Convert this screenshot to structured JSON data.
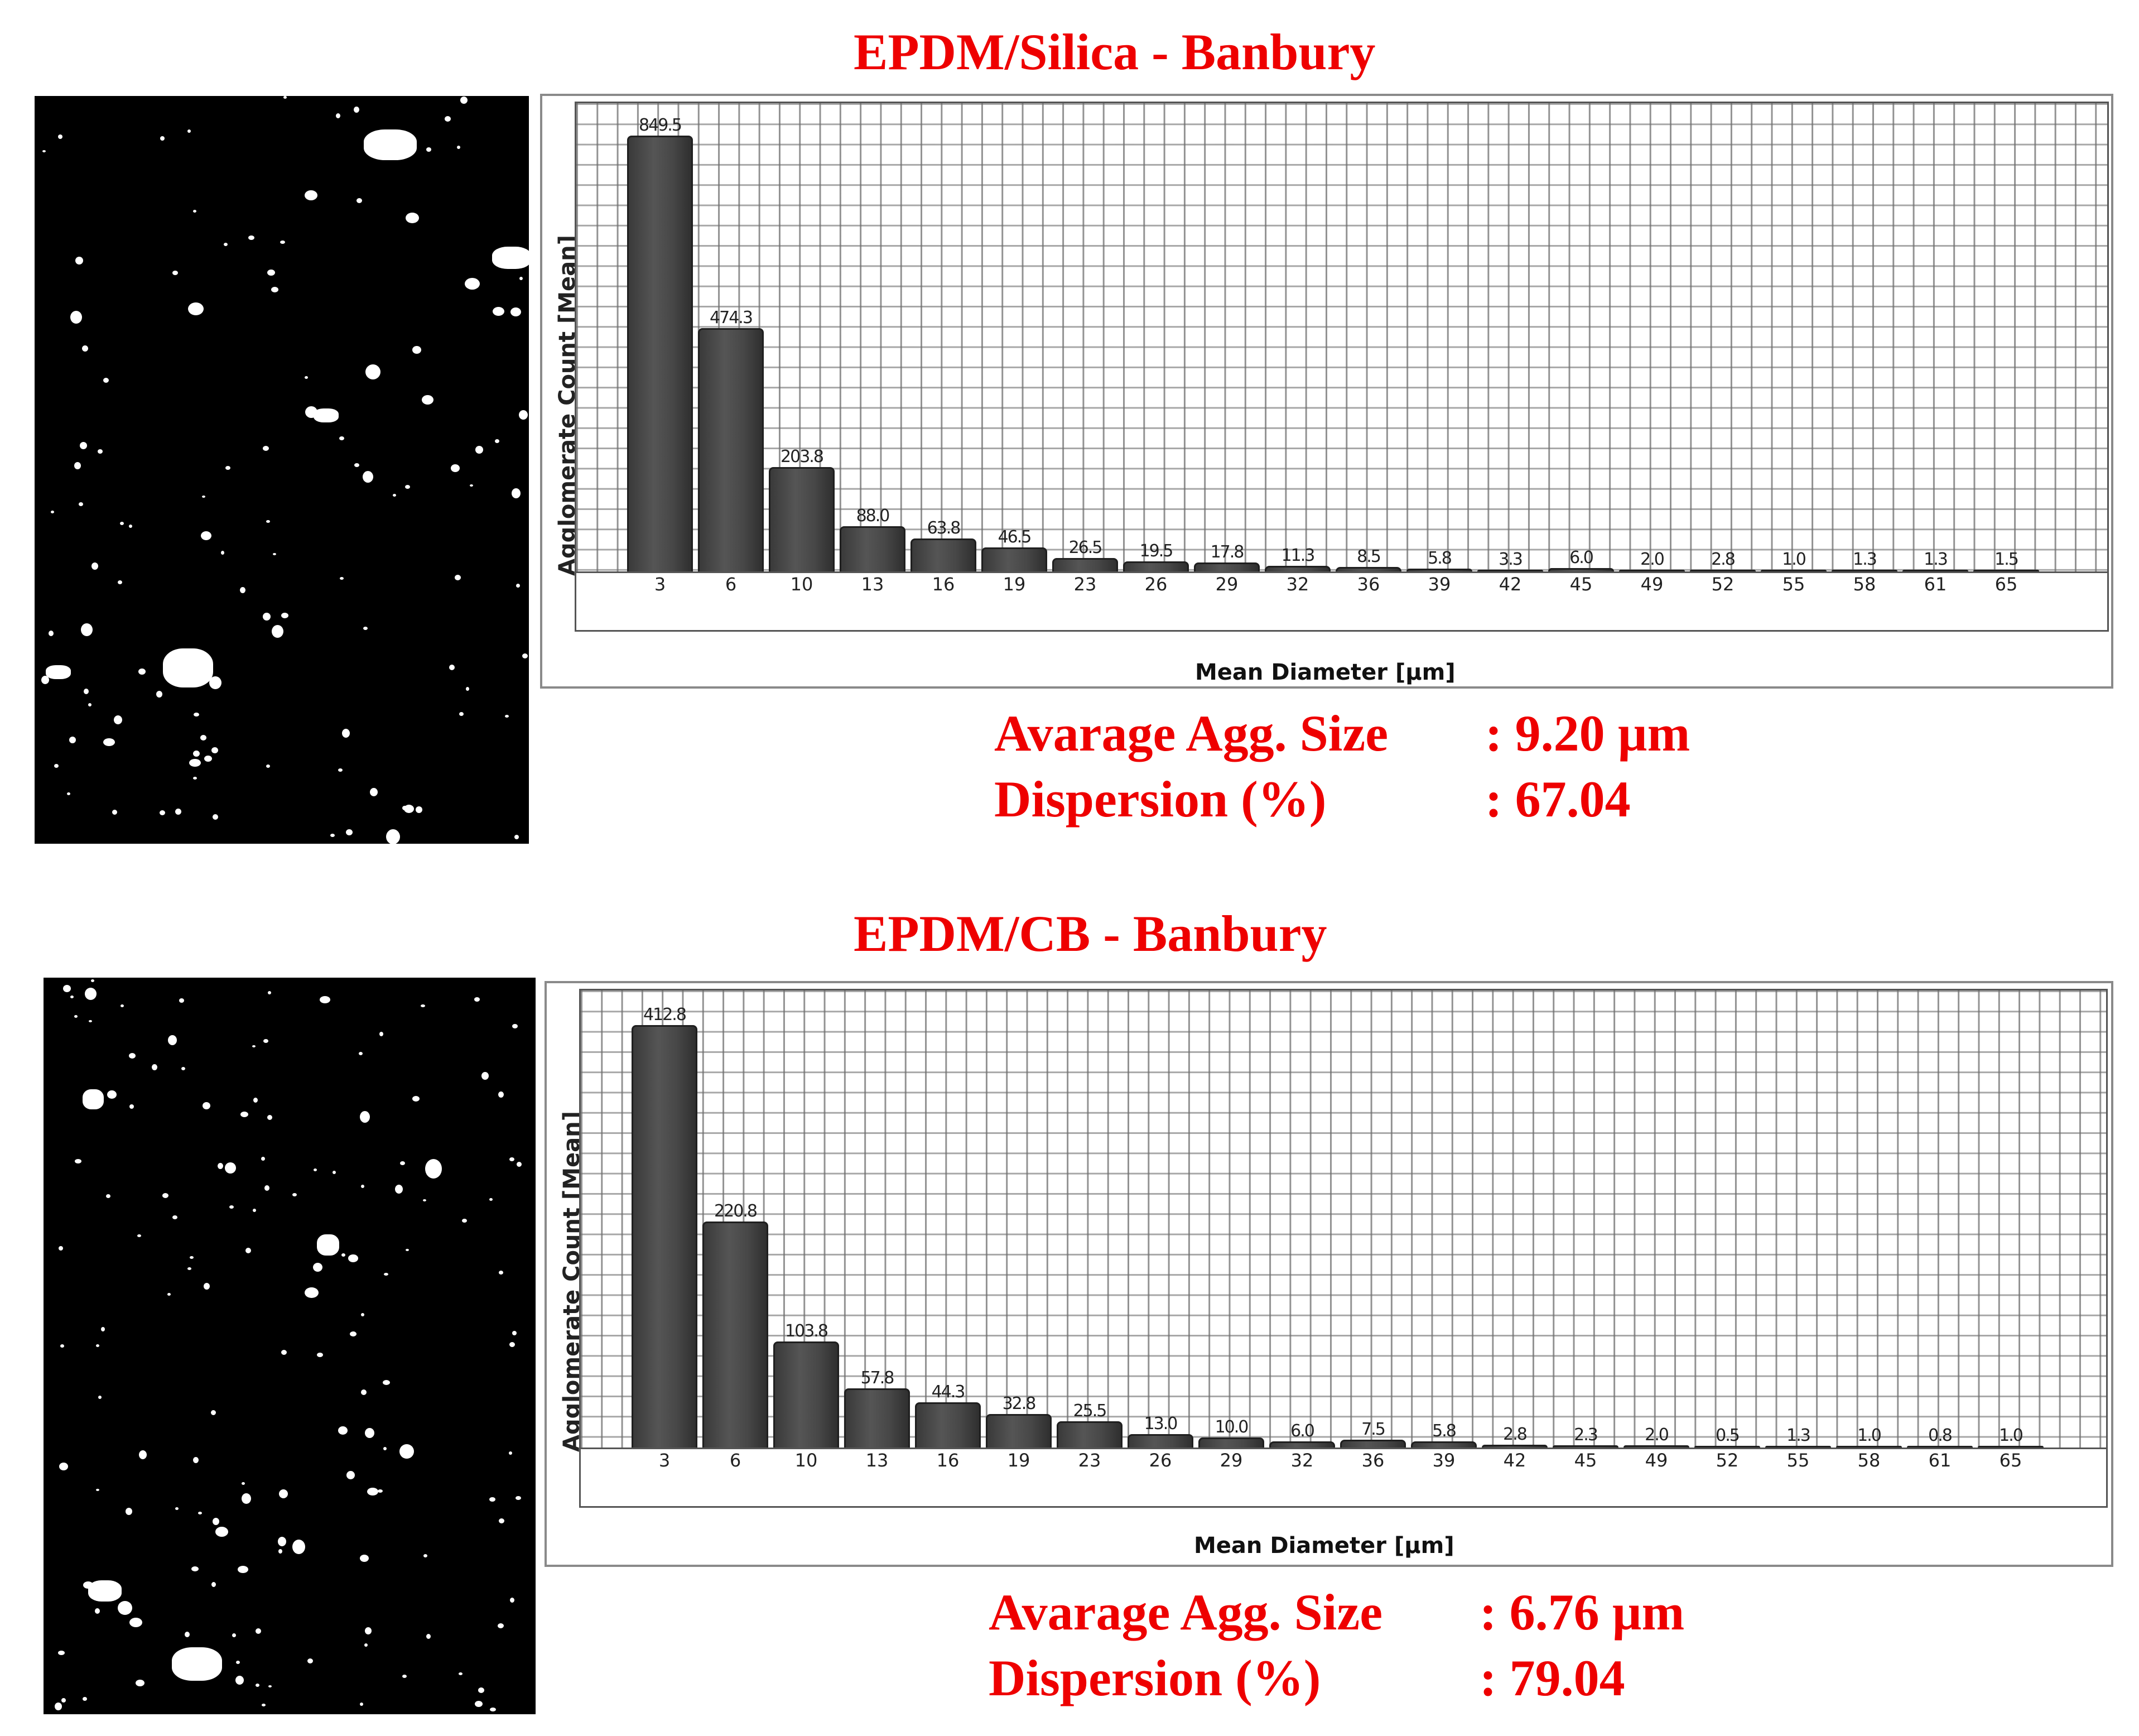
{
  "panels": [
    {
      "title": "EPDM/Silica - Banbury",
      "stats": {
        "avg_label": "Avarage Agg. Size",
        "avg_value": ": 9.20 µm",
        "disp_label": "Dispersion (%)",
        "disp_value": ": 67.04"
      }
    },
    {
      "title": "EPDM/CB - Banbury",
      "stats": {
        "avg_label": "Avarage Agg. Size",
        "avg_value": ": 6.76 µm",
        "disp_label": "Dispersion (%)",
        "disp_value": ": 79.04"
      }
    }
  ],
  "chart_data": [
    {
      "type": "bar",
      "title": "EPDM/Silica - Banbury",
      "xlabel": "Mean Diameter [µm]",
      "ylabel": "Agglomerate Count [Mean]",
      "categories": [
        "3",
        "6",
        "10",
        "13",
        "16",
        "19",
        "23",
        "26",
        "29",
        "32",
        "36",
        "39",
        "42",
        "45",
        "49",
        "52",
        "55",
        "58",
        "61",
        "65"
      ],
      "values": [
        849.5,
        474.3,
        203.8,
        88.0,
        63.8,
        46.5,
        26.5,
        19.5,
        17.8,
        11.3,
        8.5,
        5.8,
        3.3,
        6.0,
        2.0,
        2.8,
        1.0,
        1.3,
        1.3,
        1.5
      ],
      "value_labels": [
        "849.5",
        "474.3",
        "203.8",
        "88.0",
        "63.8",
        "46.5",
        "26.5",
        "19.5",
        "17.8",
        "11.3",
        "8.5",
        "5.8",
        "3.3",
        "6.0",
        "2.0",
        "2.8",
        "1.0",
        "1.3",
        "1.3",
        "1.5"
      ],
      "ylim": [
        0,
        880
      ],
      "grid": true,
      "legend": "none",
      "stats": {
        "average_agglomerate_size_um": 9.2,
        "dispersion_percent": 67.04
      }
    },
    {
      "type": "bar",
      "title": "EPDM/CB - Banbury",
      "xlabel": "Mean Diameter [µm]",
      "ylabel": "Agglomerate Count [Mean]",
      "categories": [
        "3",
        "6",
        "10",
        "13",
        "16",
        "19",
        "23",
        "26",
        "29",
        "32",
        "36",
        "39",
        "42",
        "45",
        "49",
        "52",
        "55",
        "58",
        "61",
        "65"
      ],
      "values": [
        412.8,
        220.8,
        103.8,
        57.8,
        44.3,
        32.8,
        25.5,
        13.0,
        10.0,
        6.0,
        7.5,
        5.8,
        2.8,
        2.3,
        2.0,
        0.5,
        1.3,
        1.0,
        0.8,
        1.0
      ],
      "value_labels": [
        "412.8",
        "220.8",
        "103.8",
        "57.8",
        "44.3",
        "32.8",
        "25.5",
        "13.0",
        "10.0",
        "6.0",
        "7.5",
        "5.8",
        "2.8",
        "2.3",
        "2.0",
        "0.5",
        "1.3",
        "1.0",
        "0.8",
        "1.0"
      ],
      "ylim": [
        0,
        430
      ],
      "grid": true,
      "legend": "none",
      "stats": {
        "average_agglomerate_size_um": 6.76,
        "dispersion_percent": 79.04
      }
    }
  ]
}
